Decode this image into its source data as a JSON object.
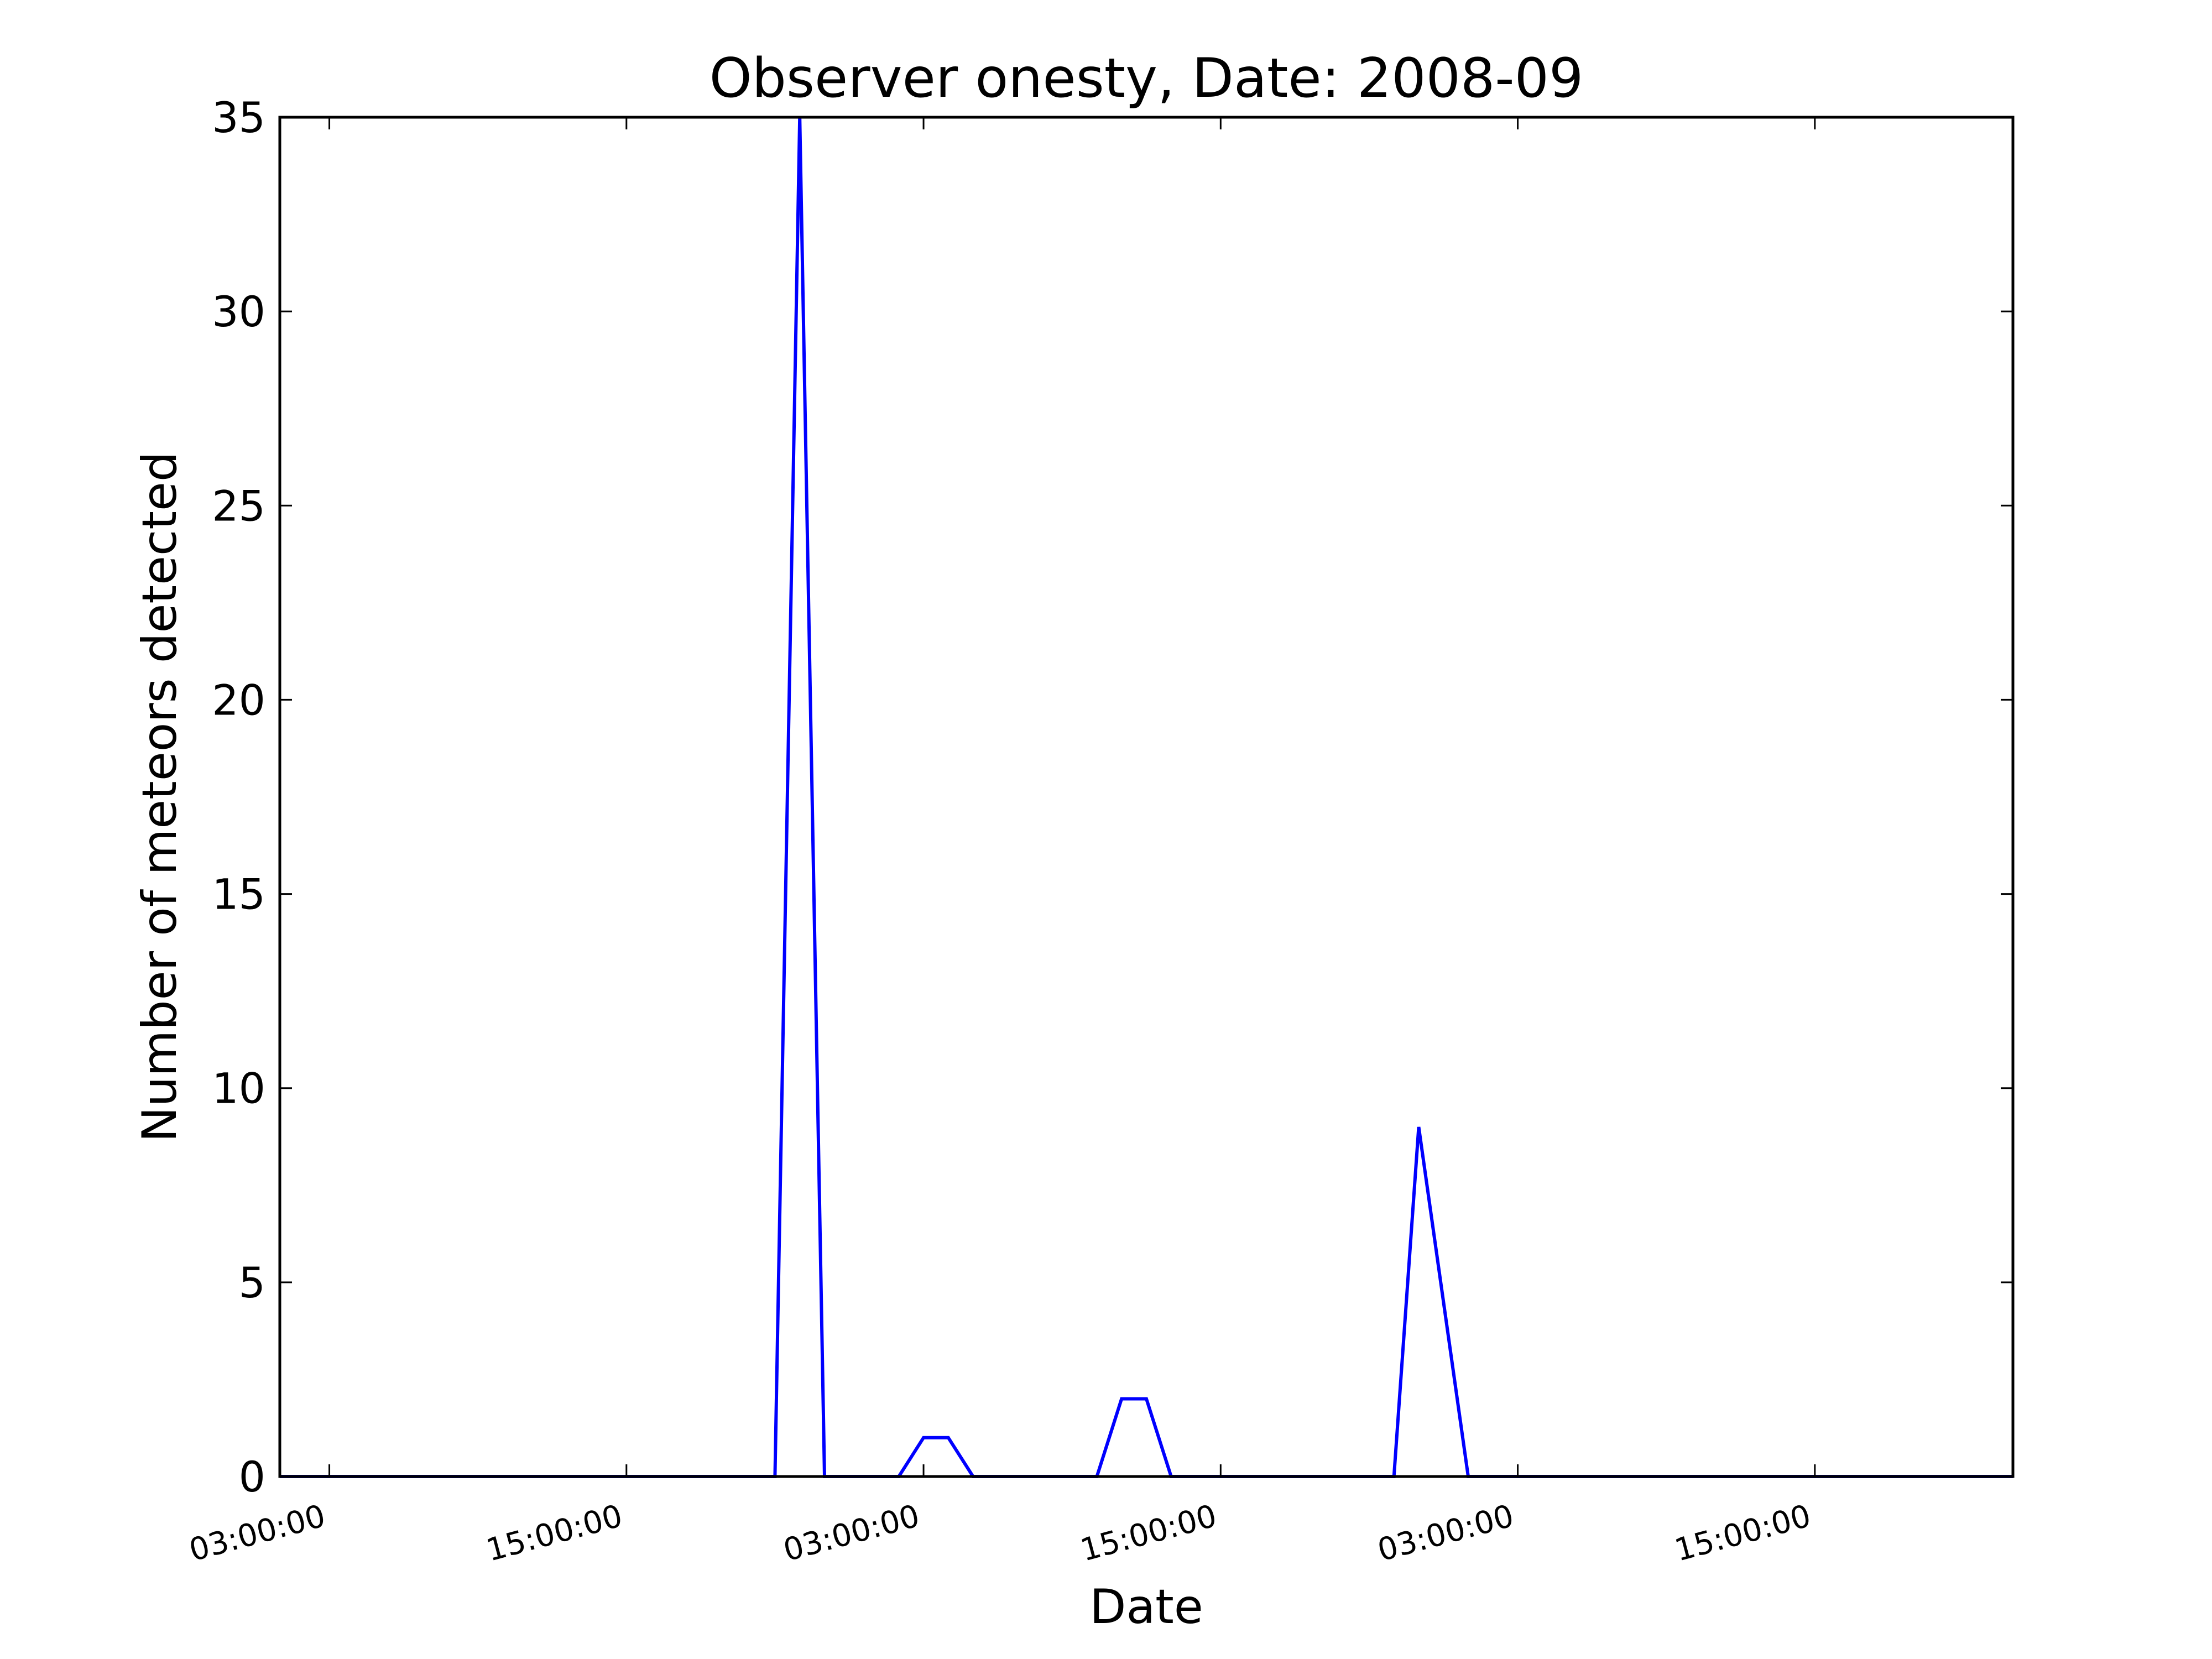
{
  "chart_data": {
    "type": "line",
    "title": "Observer onesty, Date: 2008-09",
    "xlabel": "Date",
    "ylabel": "Number of meteors detected",
    "ylim": [
      0,
      35
    ],
    "yticks": [
      0,
      5,
      10,
      15,
      20,
      25,
      30,
      35
    ],
    "xtick_labels": [
      "03:00:00",
      "15:00:00",
      "03:00:00",
      "15:00:00",
      "03:00:00",
      "15:00:00"
    ],
    "xlim_hours": [
      -2,
      68
    ],
    "xtick_hours": [
      0,
      12,
      24,
      36,
      48,
      60
    ],
    "grid": false,
    "line_color": "#0000ff",
    "series": [
      {
        "x_hours": [
          -2,
          18,
          19,
          20,
          23,
          24,
          25,
          26,
          31,
          32,
          33,
          34,
          43,
          44,
          46,
          68
        ],
        "values": [
          0,
          0,
          35,
          0,
          0,
          1,
          1,
          0,
          0,
          2,
          2,
          0,
          0,
          9,
          0,
          0
        ]
      }
    ]
  }
}
